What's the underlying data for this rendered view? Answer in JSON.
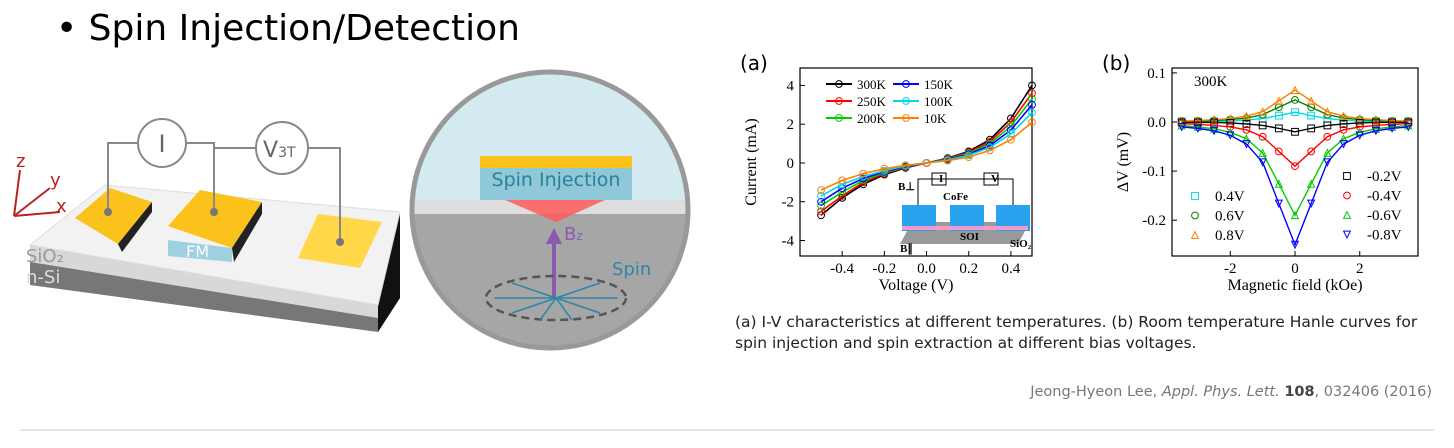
{
  "title": "• Spin Injection/Detection",
  "device": {
    "current_meter": "I",
    "voltmeter": {
      "main": "V",
      "sub": "3T"
    },
    "axes": [
      "z",
      "y",
      "x"
    ],
    "layers": [
      "SiO₂",
      "n-Si"
    ],
    "contact": "FM"
  },
  "zoom": {
    "injection": "Spin Injection",
    "field": {
      "main": "B",
      "sub": "z"
    },
    "spin": "Spin"
  },
  "caption": [
    "(a) I-V characteristics at different temperatures. (b) Room temperature Hanle curves for",
    "spin injection and spin extraction at different bias voltages."
  ],
  "citation": {
    "author": "Jeong-Hyeon Lee, ",
    "journal": "Appl. Phys. Lett.",
    "volume": "108",
    "rest": ", 032406 (2016)"
  },
  "chart_data": [
    {
      "type": "line",
      "panel": "(a)",
      "x_label": "Voltage (V)",
      "y_label": "Current (mA)",
      "x": [
        -0.5,
        -0.4,
        -0.3,
        -0.2,
        -0.1,
        0,
        0.1,
        0.2,
        0.3,
        0.4,
        0.5
      ],
      "xlim": [
        -0.6,
        0.5
      ],
      "ylim": [
        -4.8,
        4.9
      ],
      "xticks": [
        -0.4,
        -0.2,
        {
          "value": 0,
          "label": "0.0"
        },
        0.2,
        0.4
      ],
      "yticks": [
        -4,
        -2,
        0,
        2,
        4
      ],
      "inset_labels": [
        "B⊥",
        "B∥",
        "CoFe",
        "SOI",
        "SiO₂",
        "I",
        "V"
      ],
      "series": [
        {
          "name": "300K",
          "color": "#000000",
          "values": [
            -2.7,
            -1.8,
            -1.1,
            -0.6,
            -0.25,
            0,
            0.25,
            0.6,
            1.2,
            2.3,
            4.0
          ]
        },
        {
          "name": "250K",
          "color": "#ff0000",
          "values": [
            -2.5,
            -1.7,
            -1.0,
            -0.55,
            -0.22,
            0,
            0.22,
            0.55,
            1.1,
            2.1,
            3.6
          ]
        },
        {
          "name": "200K",
          "color": "#00cc00",
          "values": [
            -2.2,
            -1.5,
            -0.9,
            -0.5,
            -0.2,
            0,
            0.2,
            0.5,
            1.0,
            1.9,
            3.3
          ]
        },
        {
          "name": "150K",
          "color": "#0000ff",
          "values": [
            -2.0,
            -1.3,
            -0.8,
            -0.45,
            -0.18,
            0,
            0.18,
            0.45,
            0.9,
            1.7,
            3.0
          ]
        },
        {
          "name": "100K",
          "color": "#00d8e8",
          "values": [
            -1.7,
            -1.1,
            -0.7,
            -0.4,
            -0.15,
            0,
            0.15,
            0.4,
            0.8,
            1.5,
            2.6
          ]
        },
        {
          "name": "10K",
          "color": "#ff8000",
          "values": [
            -1.4,
            -0.9,
            -0.55,
            -0.3,
            -0.12,
            0,
            0.12,
            0.3,
            0.65,
            1.2,
            2.1
          ]
        }
      ]
    },
    {
      "type": "scatter",
      "panel": "(b)",
      "x_label": "Magnetic field (kOe)",
      "y_label": "ΔV (mV)",
      "annotation": "300K",
      "x": [
        -3.5,
        -3,
        -2.5,
        -2,
        -1.5,
        -1,
        -0.5,
        0,
        0.5,
        1,
        1.5,
        2,
        2.5,
        3,
        3.5
      ],
      "xlim": [
        -3.8,
        3.8
      ],
      "ylim": [
        -0.273,
        0.11
      ],
      "xticks": [
        -2,
        0,
        2
      ],
      "yticks": [
        -0.2,
        -0.1,
        {
          "value": 0,
          "label": "0.0"
        },
        0.1
      ],
      "series": [
        {
          "name": "0.4V",
          "color": "#00d8e8",
          "marker": "square",
          "values": [
            0.001,
            0.001,
            0.001,
            0.002,
            0.004,
            0.007,
            0.013,
            0.02,
            0.013,
            0.007,
            0.004,
            0.002,
            0.001,
            0.001,
            0.001
          ]
        },
        {
          "name": "0.6V",
          "color": "#008000",
          "marker": "circle",
          "values": [
            0.002,
            0.002,
            0.003,
            0.005,
            0.008,
            0.015,
            0.03,
            0.045,
            0.03,
            0.015,
            0.008,
            0.005,
            0.003,
            0.002,
            0.002
          ]
        },
        {
          "name": "0.8V",
          "color": "#ff8000",
          "marker": "triangle",
          "values": [
            0.002,
            0.003,
            0.005,
            0.007,
            0.012,
            0.021,
            0.043,
            0.065,
            0.043,
            0.021,
            0.012,
            0.007,
            0.005,
            0.003,
            0.002
          ]
        },
        {
          "name": "-0.2V",
          "color": "#000000",
          "marker": "square",
          "values": [
            -0.001,
            -0.001,
            -0.001,
            -0.002,
            -0.004,
            -0.007,
            -0.013,
            -0.02,
            -0.013,
            -0.007,
            -0.004,
            -0.002,
            -0.001,
            -0.001,
            -0.001
          ]
        },
        {
          "name": "-0.4V",
          "color": "#ff0000",
          "marker": "circle",
          "values": [
            -0.003,
            -0.005,
            -0.007,
            -0.01,
            -0.016,
            -0.03,
            -0.06,
            -0.09,
            -0.06,
            -0.03,
            -0.016,
            -0.01,
            -0.007,
            -0.005,
            -0.003
          ]
        },
        {
          "name": "-0.6V",
          "color": "#00cc00",
          "marker": "triangle",
          "values": [
            -0.007,
            -0.01,
            -0.014,
            -0.021,
            -0.034,
            -0.063,
            -0.126,
            -0.19,
            -0.126,
            -0.063,
            -0.034,
            -0.021,
            -0.014,
            -0.01,
            -0.007
          ]
        },
        {
          "name": "-0.8V",
          "color": "#0000ff",
          "marker": "triangle-down",
          "values": [
            -0.01,
            -0.013,
            -0.018,
            -0.027,
            -0.045,
            -0.082,
            -0.166,
            -0.25,
            -0.166,
            -0.082,
            -0.045,
            -0.027,
            -0.018,
            -0.013,
            -0.01
          ]
        }
      ]
    }
  ]
}
